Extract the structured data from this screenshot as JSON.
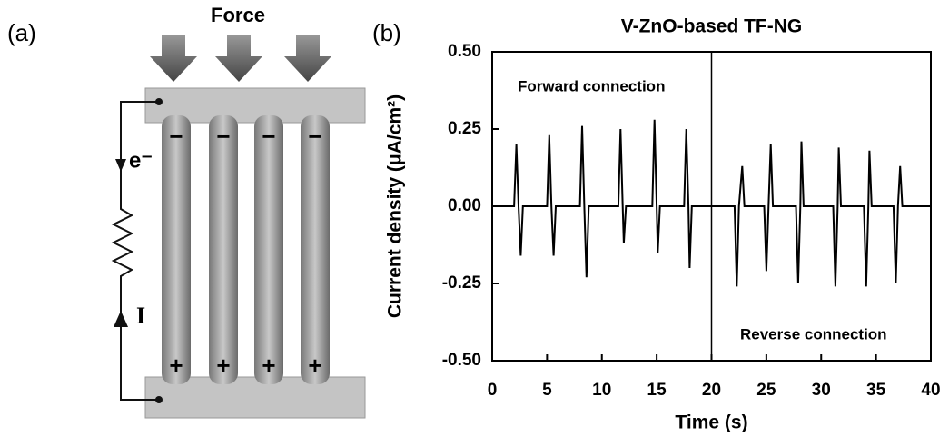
{
  "panels": {
    "a": "(a)",
    "b": "(b)"
  },
  "diagram": {
    "force_label": "Force",
    "electron_label": "e⁻",
    "current_label": "I",
    "top_signs": [
      "−",
      "−",
      "−",
      "−"
    ],
    "bottom_signs": [
      "+",
      "+",
      "+",
      "+"
    ]
  },
  "chart_data": {
    "type": "line",
    "title": "V-ZnO-based TF-NG",
    "x_label": "Time (s)",
    "y_label": "Current density (μA/cm²)",
    "x": [
      0,
      2.0,
      2.2,
      2.4,
      2.6,
      2.8,
      5.0,
      5.2,
      5.4,
      5.6,
      5.8,
      8.0,
      8.2,
      8.4,
      8.6,
      8.8,
      11.5,
      11.7,
      11.9,
      12.0,
      12.2,
      14.6,
      14.8,
      15.0,
      15.1,
      15.3,
      17.5,
      17.7,
      17.9,
      18.0,
      18.2,
      22.1,
      22.3,
      22.5,
      22.8,
      23.0,
      24.8,
      25.0,
      25.2,
      25.4,
      25.6,
      27.7,
      27.9,
      28.1,
      28.2,
      28.4,
      31.1,
      31.3,
      31.5,
      31.6,
      31.8,
      33.9,
      34.1,
      34.3,
      34.4,
      34.6,
      36.6,
      36.8,
      37.0,
      37.2,
      37.4,
      40
    ],
    "series": [
      {
        "color": "#000000",
        "values": [
          0,
          0,
          0.2,
          0,
          -0.16,
          0,
          0,
          0.23,
          0,
          -0.16,
          0,
          0,
          0.26,
          0,
          -0.23,
          0,
          0,
          0.25,
          0,
          -0.12,
          0,
          0,
          0.28,
          0,
          -0.15,
          0,
          0,
          0.25,
          0,
          -0.2,
          0,
          0,
          -0.26,
          0,
          0.13,
          0,
          0,
          -0.21,
          0,
          0.2,
          0,
          0,
          -0.25,
          0,
          0.21,
          0,
          0,
          -0.26,
          0,
          0.19,
          0,
          0,
          -0.26,
          0,
          0.18,
          0,
          0,
          -0.25,
          0,
          0.13,
          0,
          0
        ]
      }
    ],
    "xlim": [
      0,
      40
    ],
    "xticks": [
      0,
      5,
      10,
      15,
      20,
      25,
      30,
      35,
      40
    ],
    "ylim": [
      -0.5,
      0.5
    ],
    "yticks": [
      {
        "value": -0.5,
        "label": "-0.50"
      },
      {
        "value": -0.25,
        "label": "-0.25"
      },
      {
        "value": 0,
        "label": "0.00"
      },
      {
        "value": 0.25,
        "label": "0.25"
      },
      {
        "value": 0.5,
        "label": "0.50"
      }
    ],
    "divider_x": 20,
    "annotations": [
      "Forward connection",
      "Reverse connection"
    ]
  }
}
